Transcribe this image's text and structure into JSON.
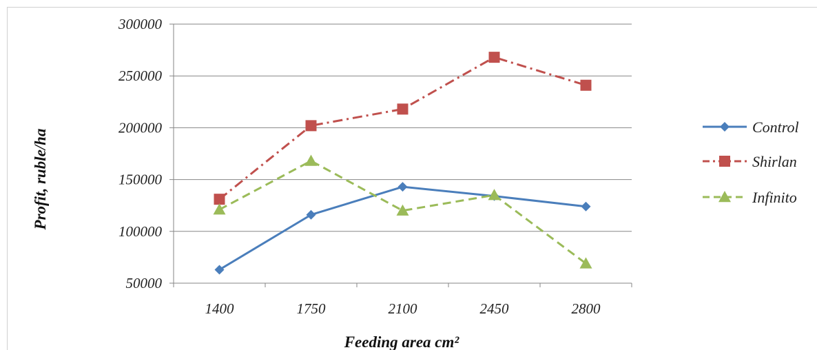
{
  "chart_data": {
    "type": "line",
    "categories": [
      "1400",
      "1750",
      "2100",
      "2450",
      "2800"
    ],
    "xlabel": "Feeding area cm²",
    "ylabel": "Profit, ruble/ha",
    "ylim": [
      50000,
      300000
    ],
    "yticks": [
      "300000",
      "250000",
      "200000",
      "150000",
      "100000",
      "50000"
    ],
    "grid": true,
    "legend_position": "right",
    "series": [
      {
        "name": "Control",
        "values": [
          63000,
          116000,
          143000,
          134000,
          124000
        ],
        "color": "#4a7ebb",
        "marker": "diamond",
        "dash": "solid"
      },
      {
        "name": "Shirlan",
        "values": [
          131000,
          202000,
          218000,
          268000,
          241000
        ],
        "color": "#c0504d",
        "marker": "square",
        "dash": "dash-dot"
      },
      {
        "name": "Infinito",
        "values": [
          121000,
          168000,
          120000,
          135000,
          69000
        ],
        "color": "#9bbb59",
        "marker": "triangle",
        "dash": "dashed"
      }
    ]
  }
}
